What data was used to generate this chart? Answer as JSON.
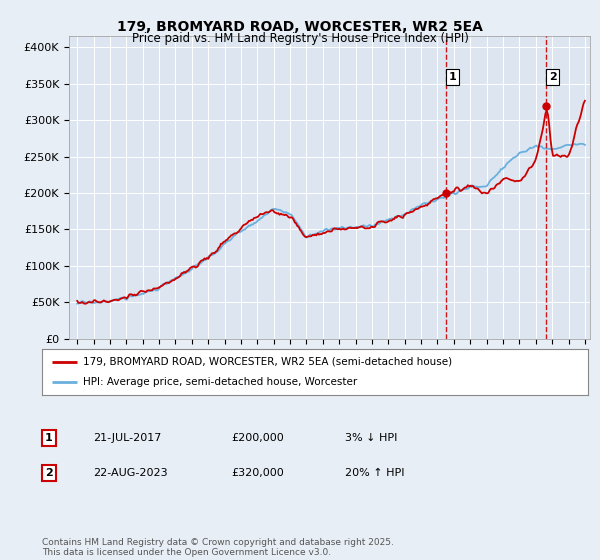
{
  "title_line1": "179, BROMYARD ROAD, WORCESTER, WR2 5EA",
  "title_line2": "Price paid vs. HM Land Registry's House Price Index (HPI)",
  "ylabel_ticks": [
    "£0",
    "£50K",
    "£100K",
    "£150K",
    "£200K",
    "£250K",
    "£300K",
    "£350K",
    "£400K"
  ],
  "ylabel_values": [
    0,
    50000,
    100000,
    150000,
    200000,
    250000,
    300000,
    350000,
    400000
  ],
  "ylim": [
    0,
    415000
  ],
  "hpi_color": "#6ab0de",
  "price_color": "#cc0000",
  "marker1_year": 2017.55,
  "marker1_value": 200000,
  "marker2_year": 2023.65,
  "marker2_value": 320000,
  "legend_line1": "179, BROMYARD ROAD, WORCESTER, WR2 5EA (semi-detached house)",
  "legend_line2": "HPI: Average price, semi-detached house, Worcester",
  "note1_label": "1",
  "note1_date": "21-JUL-2017",
  "note1_price": "£200,000",
  "note1_hpi": "3% ↓ HPI",
  "note2_label": "2",
  "note2_date": "22-AUG-2023",
  "note2_price": "£320,000",
  "note2_hpi": "20% ↑ HPI",
  "footer": "Contains HM Land Registry data © Crown copyright and database right 2025.\nThis data is licensed under the Open Government Licence v3.0.",
  "bg_color": "#e8eef5",
  "plot_bg_color": "#dde6f0",
  "grid_color": "#ffffff",
  "dashed_line_color": "#cc0000"
}
